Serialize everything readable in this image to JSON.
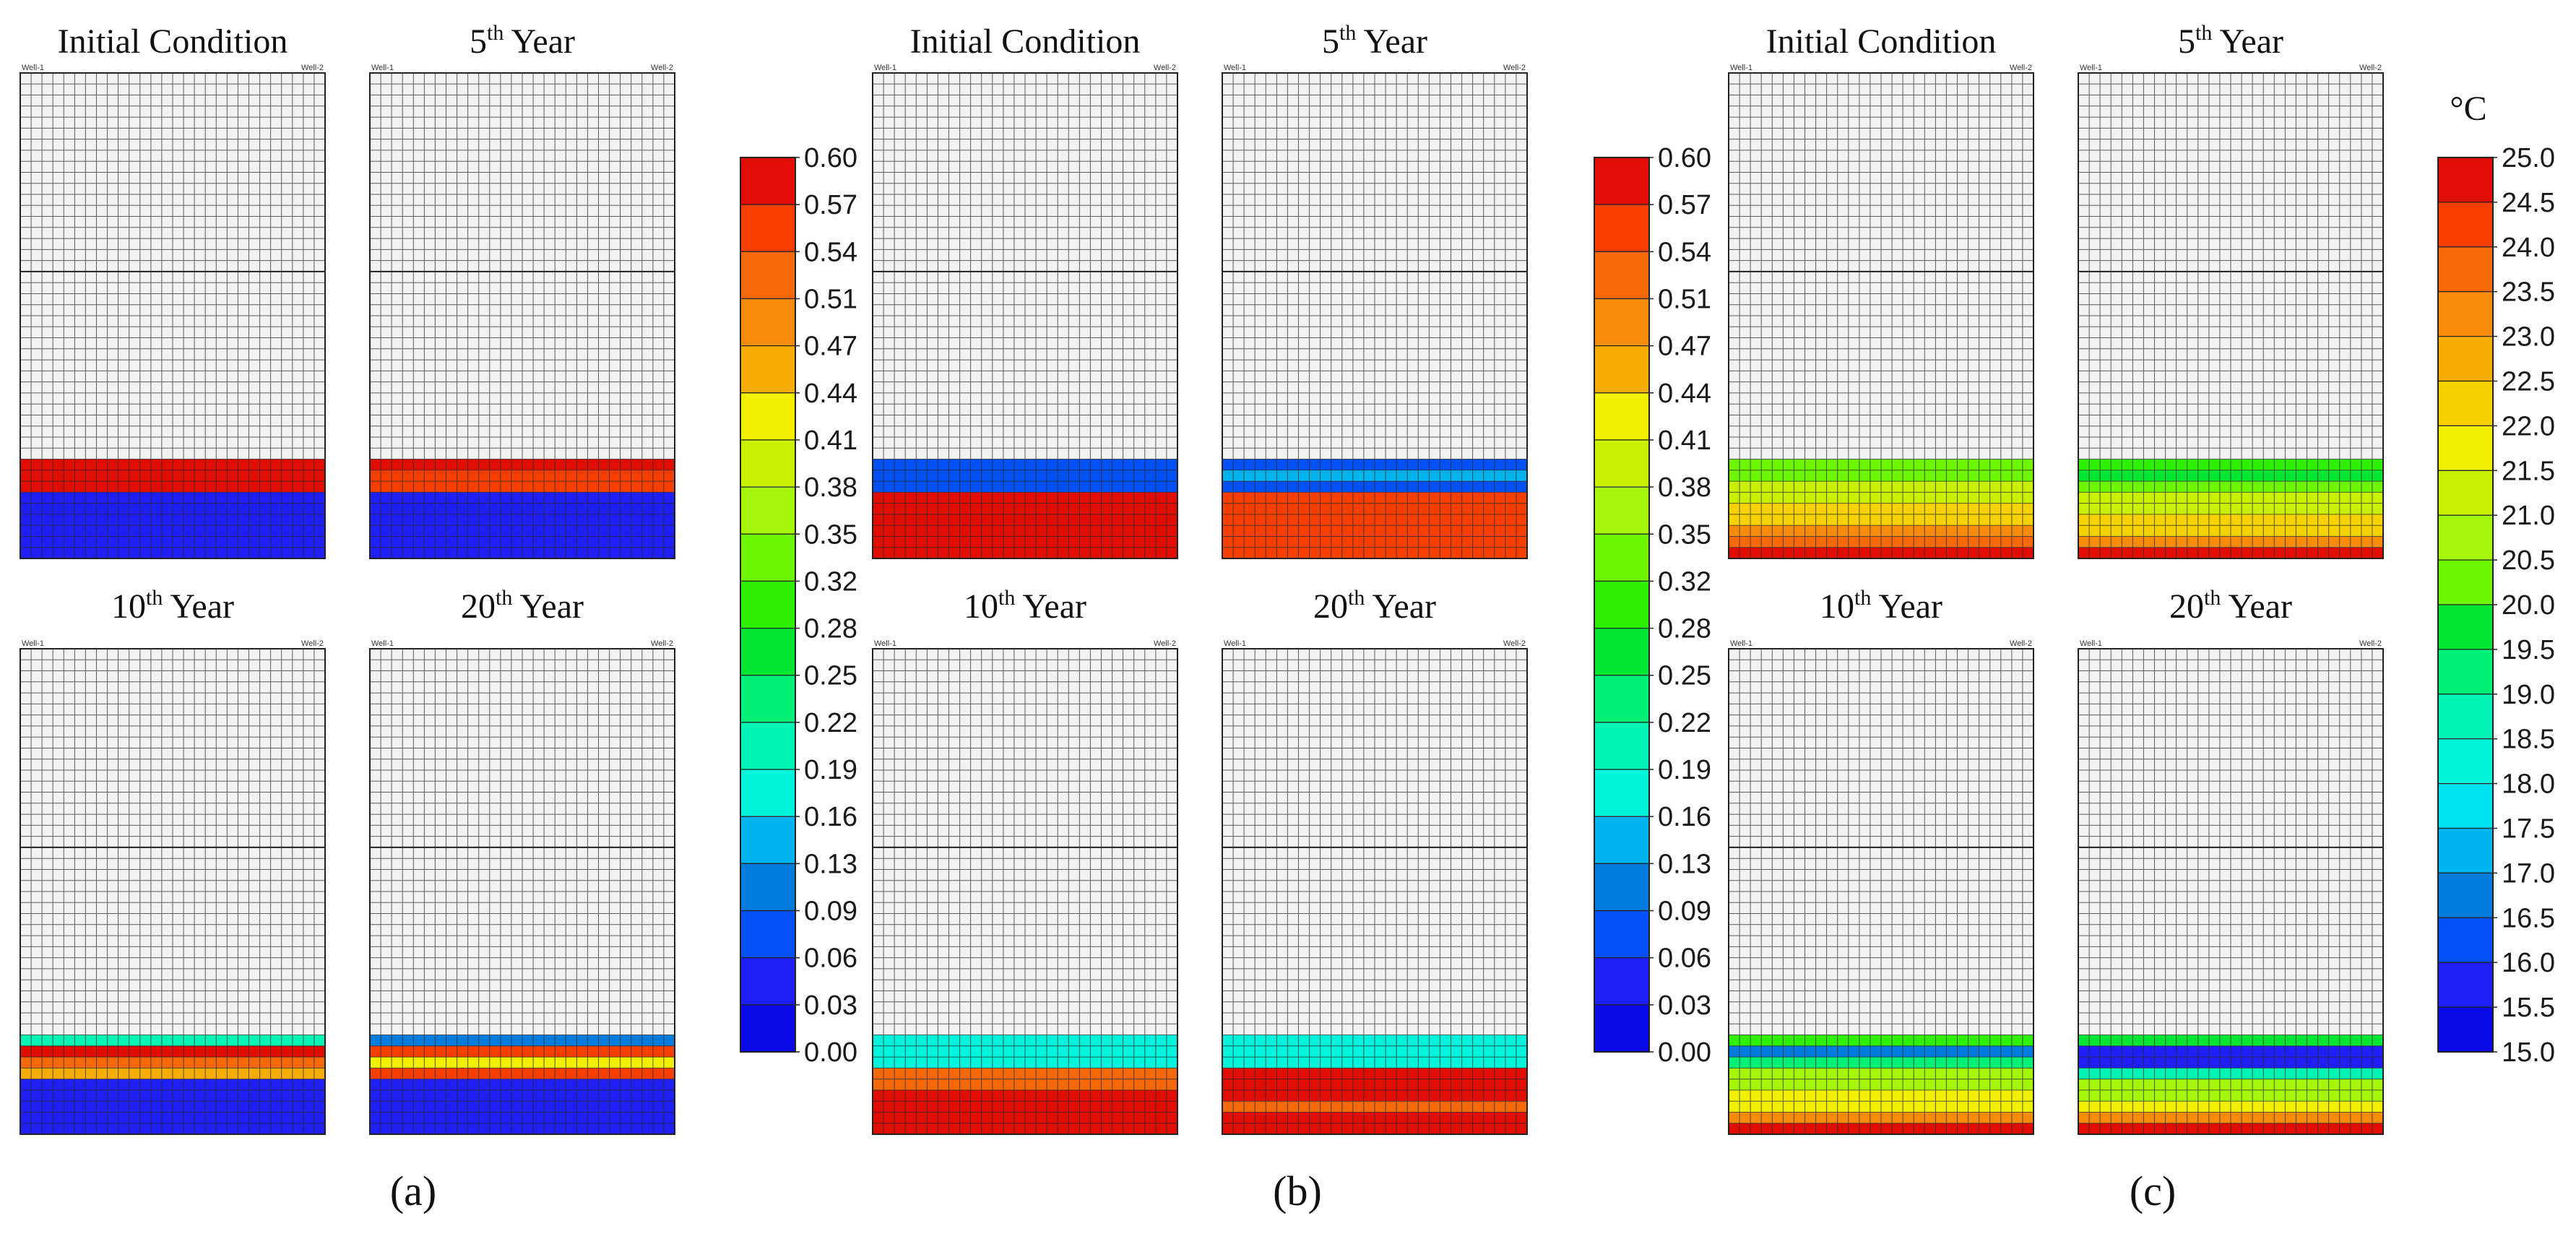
{
  "chart_data": [
    {
      "type": "heatmap",
      "caption": "(a)",
      "colorbar": {
        "unit": "",
        "ticks": [
          "0.60",
          "0.57",
          "0.54",
          "0.51",
          "0.47",
          "0.44",
          "0.41",
          "0.38",
          "0.35",
          "0.32",
          "0.28",
          "0.25",
          "0.22",
          "0.19",
          "0.16",
          "0.13",
          "0.09",
          "0.06",
          "0.03",
          "0.00"
        ],
        "vmin": 0.0,
        "vmax": 0.6
      },
      "grid": {
        "columns": 28,
        "rows": 44
      },
      "well_labels": [
        "Well-1",
        "Well-2"
      ],
      "panels": [
        {
          "title": "Initial Condition",
          "title_base": "Initial Condition",
          "title_sup": "",
          "title_suffix": "",
          "bands": [
            {
              "from_row": 35,
              "to_row": 38,
              "value": 0.6
            },
            {
              "from_row": 38,
              "to_row": 44,
              "value": 0.0
            }
          ]
        },
        {
          "title": "5th Year",
          "title_base": "5",
          "title_sup": "th",
          "title_suffix": " Year",
          "bands": [
            {
              "from_row": 35,
              "to_row": 36,
              "value": 0.59
            },
            {
              "from_row": 36,
              "to_row": 38,
              "value": 0.56
            },
            {
              "from_row": 38,
              "to_row": 44,
              "value": 0.0
            }
          ]
        },
        {
          "title": "10th Year",
          "title_base": "10",
          "title_sup": "th",
          "title_suffix": " Year",
          "bands": [
            {
              "from_row": 35,
              "to_row": 36,
              "value": 0.19
            },
            {
              "from_row": 36,
              "to_row": 37,
              "value": 0.6
            },
            {
              "from_row": 37,
              "to_row": 38,
              "value": 0.54
            },
            {
              "from_row": 38,
              "to_row": 39,
              "value": 0.47
            },
            {
              "from_row": 39,
              "to_row": 44,
              "value": 0.0
            }
          ]
        },
        {
          "title": "20th Year",
          "title_base": "20",
          "title_sup": "th",
          "title_suffix": " Year",
          "bands": [
            {
              "from_row": 35,
              "to_row": 36,
              "value": 0.06
            },
            {
              "from_row": 36,
              "to_row": 37,
              "value": 0.57
            },
            {
              "from_row": 37,
              "to_row": 38,
              "value": 0.4
            },
            {
              "from_row": 38,
              "to_row": 39,
              "value": 0.56
            },
            {
              "from_row": 39,
              "to_row": 44,
              "value": 0.0
            }
          ]
        }
      ]
    },
    {
      "type": "heatmap",
      "caption": "(b)",
      "colorbar": {
        "unit": "",
        "ticks": [
          "0.60",
          "0.57",
          "0.54",
          "0.51",
          "0.47",
          "0.44",
          "0.41",
          "0.38",
          "0.35",
          "0.32",
          "0.28",
          "0.25",
          "0.22",
          "0.19",
          "0.16",
          "0.13",
          "0.09",
          "0.06",
          "0.03",
          "0.00"
        ],
        "vmin": 0.0,
        "vmax": 0.6
      },
      "grid": {
        "columns": 28,
        "rows": 44
      },
      "well_labels": [
        "Well-1",
        "Well-2"
      ],
      "panels": [
        {
          "title": "Initial Condition",
          "title_base": "Initial Condition",
          "title_sup": "",
          "title_suffix": "",
          "bands": [
            {
              "from_row": 35,
              "to_row": 38,
              "value": 0.02
            },
            {
              "from_row": 38,
              "to_row": 44,
              "value": 0.59
            }
          ]
        },
        {
          "title": "5th Year",
          "title_base": "5",
          "title_sup": "th",
          "title_suffix": " Year",
          "bands": [
            {
              "from_row": 35,
              "to_row": 36,
              "value": 0.04
            },
            {
              "from_row": 36,
              "to_row": 37,
              "value": 0.08
            },
            {
              "from_row": 37,
              "to_row": 38,
              "value": 0.04
            },
            {
              "from_row": 38,
              "to_row": 44,
              "value": 0.58
            }
          ]
        },
        {
          "title": "10th Year",
          "title_base": "10",
          "title_sup": "th",
          "title_suffix": " Year",
          "bands": [
            {
              "from_row": 35,
              "to_row": 38,
              "value": 0.15
            },
            {
              "from_row": 38,
              "to_row": 40,
              "value": 0.54
            },
            {
              "from_row": 40,
              "to_row": 44,
              "value": 0.59
            }
          ]
        },
        {
          "title": "20th Year",
          "title_base": "20",
          "title_sup": "th",
          "title_suffix": " Year",
          "bands": [
            {
              "from_row": 35,
              "to_row": 38,
              "value": 0.15
            },
            {
              "from_row": 38,
              "to_row": 41,
              "value": 0.59
            },
            {
              "from_row": 41,
              "to_row": 42,
              "value": 0.55
            },
            {
              "from_row": 42,
              "to_row": 44,
              "value": 0.59
            }
          ]
        }
      ]
    },
    {
      "type": "heatmap",
      "caption": "(c)",
      "colorbar": {
        "unit": "°C",
        "ticks": [
          "25.0",
          "24.5",
          "24.0",
          "23.5",
          "23.0",
          "22.5",
          "22.0",
          "21.5",
          "21.0",
          "20.5",
          "20.0",
          "19.5",
          "19.0",
          "18.5",
          "18.0",
          "17.5",
          "17.0",
          "16.5",
          "16.0",
          "15.5",
          "15.0"
        ],
        "vmin": 15.0,
        "vmax": 25.0
      },
      "grid": {
        "columns": 28,
        "rows": 44
      },
      "well_labels": [
        "Well-1",
        "Well-2"
      ],
      "panels": [
        {
          "title": "Initial Condition",
          "title_base": "Initial Condition",
          "title_sup": "",
          "title_suffix": "",
          "bands": [
            {
              "from_row": 35,
              "to_row": 37,
              "value": 20.5
            },
            {
              "from_row": 37,
              "to_row": 39,
              "value": 21.5
            },
            {
              "from_row": 39,
              "to_row": 41,
              "value": 22.5
            },
            {
              "from_row": 41,
              "to_row": 42,
              "value": 23.5
            },
            {
              "from_row": 42,
              "to_row": 43,
              "value": 24.0
            },
            {
              "from_row": 43,
              "to_row": 44,
              "value": 25.0
            }
          ]
        },
        {
          "title": "5th Year",
          "title_base": "5",
          "title_sup": "th",
          "title_suffix": " Year",
          "bands": [
            {
              "from_row": 35,
              "to_row": 36,
              "value": 20.0
            },
            {
              "from_row": 36,
              "to_row": 37,
              "value": 19.5
            },
            {
              "from_row": 37,
              "to_row": 38,
              "value": 20.5
            },
            {
              "from_row": 38,
              "to_row": 40,
              "value": 21.5
            },
            {
              "from_row": 40,
              "to_row": 42,
              "value": 22.5
            },
            {
              "from_row": 42,
              "to_row": 43,
              "value": 23.5
            },
            {
              "from_row": 43,
              "to_row": 44,
              "value": 25.0
            }
          ]
        },
        {
          "title": "10th Year",
          "title_base": "10",
          "title_sup": "th",
          "title_suffix": " Year",
          "bands": [
            {
              "from_row": 35,
              "to_row": 36,
              "value": 20.0
            },
            {
              "from_row": 36,
              "to_row": 37,
              "value": 16.5
            },
            {
              "from_row": 37,
              "to_row": 38,
              "value": 19.0
            },
            {
              "from_row": 38,
              "to_row": 40,
              "value": 21.0
            },
            {
              "from_row": 40,
              "to_row": 42,
              "value": 22.0
            },
            {
              "from_row": 42,
              "to_row": 43,
              "value": 23.5
            },
            {
              "from_row": 43,
              "to_row": 44,
              "value": 25.0
            }
          ]
        },
        {
          "title": "20th Year",
          "title_base": "20",
          "title_sup": "th",
          "title_suffix": " Year",
          "bands": [
            {
              "from_row": 35,
              "to_row": 36,
              "value": 19.5
            },
            {
              "from_row": 36,
              "to_row": 38,
              "value": 15.5
            },
            {
              "from_row": 38,
              "to_row": 39,
              "value": 18.5
            },
            {
              "from_row": 39,
              "to_row": 41,
              "value": 21.0
            },
            {
              "from_row": 41,
              "to_row": 42,
              "value": 22.0
            },
            {
              "from_row": 42,
              "to_row": 43,
              "value": 23.5
            },
            {
              "from_row": 43,
              "to_row": 44,
              "value": 25.0
            }
          ]
        }
      ]
    }
  ]
}
